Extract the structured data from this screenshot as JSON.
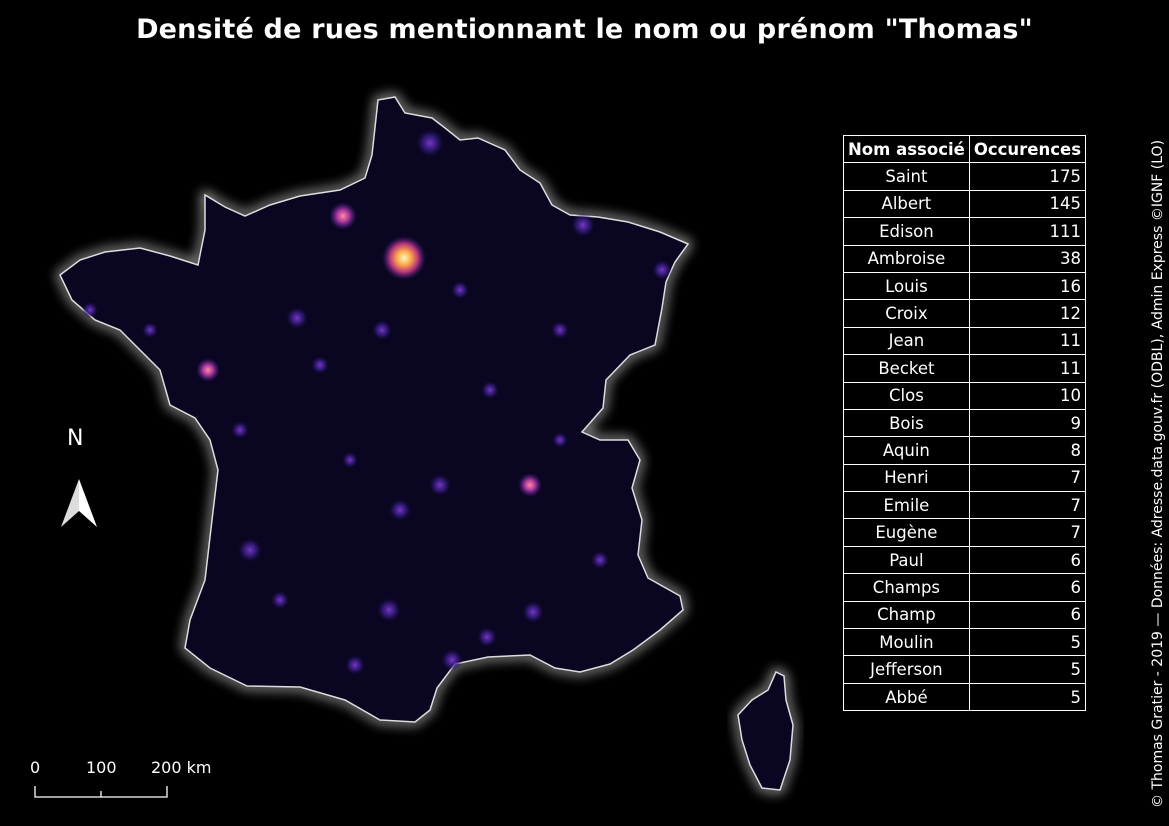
{
  "map": {
    "title": "Densité de rues mentionnant le nom ou prénom \"Thomas\"",
    "credits": "© Thomas Gratier - 2019 — Données: Adresse.data.gouv.fr (ODBL), Admin Express ©IGNF (LO)",
    "colors": {
      "background": "#000000",
      "land": "#0a0520",
      "coast_glow": "#ffffff",
      "density_low": "#3b1f8c",
      "density_mid": "#9d3fbf",
      "density_high": "#ffd27a"
    }
  },
  "north_arrow": {
    "label": "N"
  },
  "scale_bar": {
    "labels": [
      "0",
      "100",
      "200 km"
    ]
  },
  "table": {
    "headers": {
      "name": "Nom associé",
      "count": "Occurences"
    },
    "rows": [
      {
        "name": "Saint",
        "count": "175"
      },
      {
        "name": "Albert",
        "count": "145"
      },
      {
        "name": "Edison",
        "count": "111"
      },
      {
        "name": "Ambroise",
        "count": "38"
      },
      {
        "name": "Louis",
        "count": "16"
      },
      {
        "name": "Croix",
        "count": "12"
      },
      {
        "name": "Jean",
        "count": "11"
      },
      {
        "name": "Becket",
        "count": "11"
      },
      {
        "name": "Clos",
        "count": "10"
      },
      {
        "name": "Bois",
        "count": "9"
      },
      {
        "name": "Aquin",
        "count": "8"
      },
      {
        "name": "Henri",
        "count": "7"
      },
      {
        "name": "Emile",
        "count": "7"
      },
      {
        "name": "Eugène",
        "count": "7"
      },
      {
        "name": "Paul",
        "count": "6"
      },
      {
        "name": "Champs",
        "count": "6"
      },
      {
        "name": "Champ",
        "count": "6"
      },
      {
        "name": "Moulin",
        "count": "5"
      },
      {
        "name": "Jefferson",
        "count": "5"
      },
      {
        "name": "Abbé",
        "count": "5"
      }
    ]
  }
}
